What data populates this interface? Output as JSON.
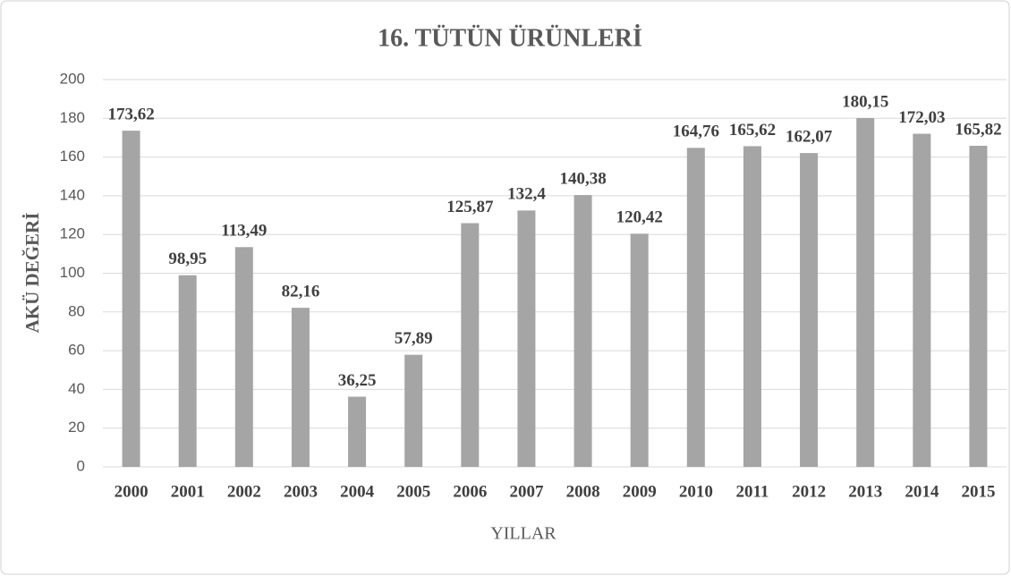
{
  "chart_data": {
    "type": "bar",
    "title": "16. TÜTÜN ÜRÜNLERİ",
    "x_label": "YILLAR",
    "y_label": "AKÜ DEĞERİ",
    "categories": [
      "2000",
      "2001",
      "2002",
      "2003",
      "2004",
      "2005",
      "2006",
      "2007",
      "2008",
      "2009",
      "2010",
      "2011",
      "2012",
      "2013",
      "2014",
      "2015"
    ],
    "values": [
      173.62,
      98.95,
      113.49,
      82.16,
      36.25,
      57.89,
      125.87,
      132.4,
      140.38,
      120.42,
      164.76,
      165.62,
      162.07,
      180.15,
      172.03,
      165.82
    ],
    "value_labels": [
      "173,62",
      "98,95",
      "113,49",
      "82,16",
      "36,25",
      "57,89",
      "125,87",
      "132,4",
      "140,38",
      "120,42",
      "164,76",
      "165,62",
      "162,07",
      "180,15",
      "172,03",
      "165,82"
    ],
    "color": "#a5a5a5",
    "ylim": [
      0,
      200
    ],
    "yticks": [
      0,
      20,
      40,
      60,
      80,
      100,
      120,
      140,
      160,
      180,
      200
    ],
    "grid": true
  }
}
